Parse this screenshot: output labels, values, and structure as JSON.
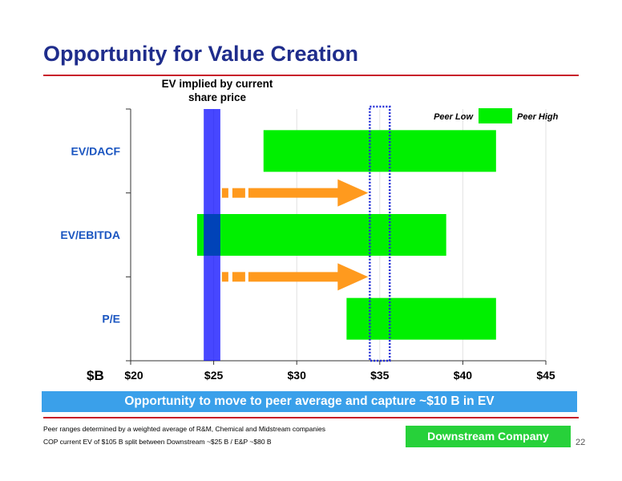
{
  "slide": {
    "title": "Opportunity for Value Creation",
    "banner": "Opportunity to move to peer average and capture ~$10 B in EV",
    "footnotes": [
      "Peer ranges determined by a weighted average of R&M, Chemical and Midstream companies",
      "COP current EV of $105 B split between Downstream ~$25 B / E&P ~$80 B"
    ],
    "company_label": "Downstream Company",
    "page_number": "22"
  },
  "colors": {
    "title": "#1f2d8c",
    "range_bar": "#00f000",
    "current_band": "#0000ff",
    "arrow": "#ff9a1e",
    "target_box": "#1f2ad6",
    "category_label": "#1a55c0",
    "banner": "#3aa0ea",
    "company_badge": "#27d13a"
  },
  "chart_data": {
    "type": "bar",
    "orientation": "horizontal",
    "unit_label": "$B",
    "categories": [
      "EV/DACF",
      "EV/EBITDA",
      "P/E"
    ],
    "ranges": [
      {
        "category": "EV/DACF",
        "low": 28,
        "high": 42
      },
      {
        "category": "EV/EBITDA",
        "low": 24,
        "high": 39
      },
      {
        "category": "P/E",
        "low": 33,
        "high": 42
      }
    ],
    "xlim": [
      20,
      45
    ],
    "xticks": [
      20,
      25,
      30,
      35,
      40,
      45
    ],
    "xtick_labels": [
      "$20",
      "$25",
      "$30",
      "$35",
      "$40",
      "$45"
    ],
    "grid": "vertical",
    "legend": {
      "position": "top-right",
      "low_label": "Peer Low",
      "high_label": "Peer High"
    },
    "current_ev": {
      "label": "EV implied by current share price",
      "low": 24.4,
      "high": 25.4
    },
    "target_band": {
      "low": 34.4,
      "high": 35.6
    },
    "arrows": [
      {
        "from": 25.4,
        "to": 34.3,
        "position": "between EV/DACF and EV/EBITDA"
      },
      {
        "from": 25.4,
        "to": 34.3,
        "position": "between EV/EBITDA and P/E"
      }
    ]
  }
}
